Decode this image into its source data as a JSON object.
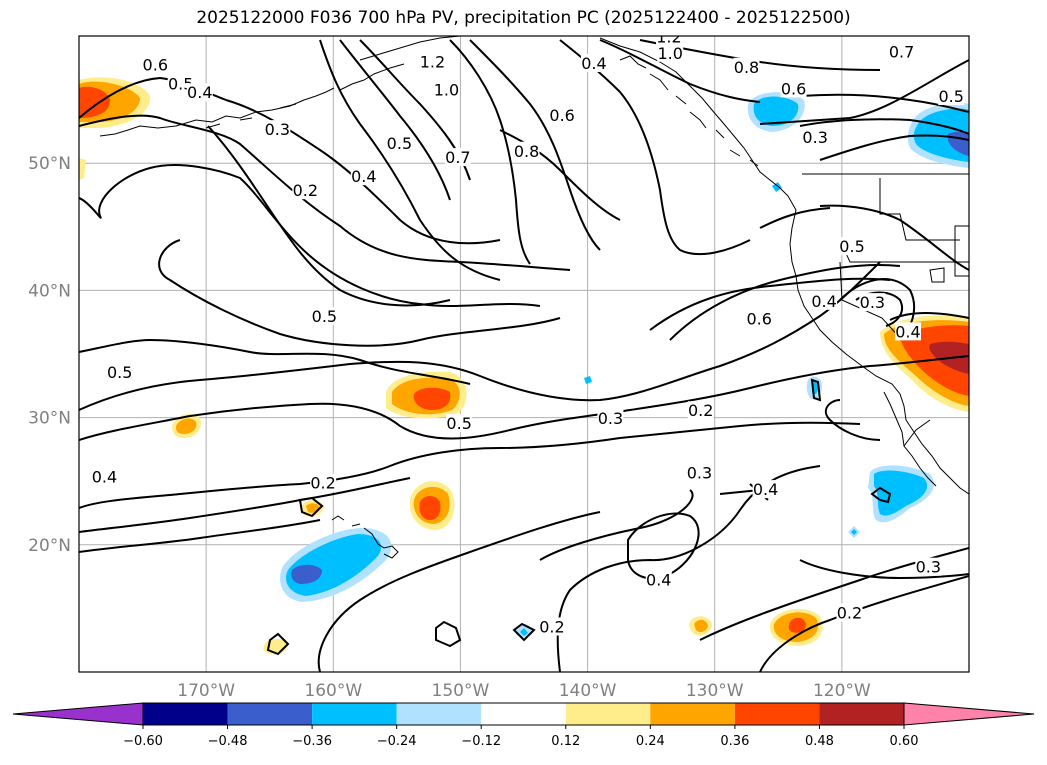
{
  "title": "2025122000 F036 700 hPa PV, precipitation PC (2025122400 - 2025122500)",
  "map": {
    "lon_range": [
      -180,
      -110
    ],
    "lat_range": [
      10,
      60
    ],
    "lat_ticks": [
      {
        "value": 50,
        "label": "50°N"
      },
      {
        "value": 40,
        "label": "40°N"
      },
      {
        "value": 30,
        "label": "30°N"
      },
      {
        "value": 20,
        "label": "20°N"
      }
    ],
    "lon_ticks": [
      {
        "value": -170,
        "label": "170°W"
      },
      {
        "value": -160,
        "label": "160°W"
      },
      {
        "value": -150,
        "label": "150°W"
      },
      {
        "value": -140,
        "label": "140°W"
      },
      {
        "value": -130,
        "label": "130°W"
      },
      {
        "value": -120,
        "label": "120°W"
      }
    ],
    "grid": true,
    "pv_contour_labels": [
      {
        "text": "0.6",
        "lon": -174,
        "lat": 57.7
      },
      {
        "text": "0.5",
        "lon": -172,
        "lat": 56.2
      },
      {
        "text": "0.4",
        "lon": -170.5,
        "lat": 55.5
      },
      {
        "text": "0.3",
        "lon": -164.4,
        "lat": 52.6
      },
      {
        "text": "0.2",
        "lon": -162.2,
        "lat": 47.8
      },
      {
        "text": "0.4",
        "lon": -157.6,
        "lat": 48.9
      },
      {
        "text": "0.5",
        "lon": -154.8,
        "lat": 51.5
      },
      {
        "text": "0.7",
        "lon": -150.2,
        "lat": 50.4
      },
      {
        "text": "0.8",
        "lon": -144.8,
        "lat": 50.9
      },
      {
        "text": "1.2",
        "lon": -152.2,
        "lat": 57.9
      },
      {
        "text": "1.0",
        "lon": -151.1,
        "lat": 55.7
      },
      {
        "text": "0.4",
        "lon": -139.5,
        "lat": 57.8
      },
      {
        "text": "0.6",
        "lon": -142,
        "lat": 53.7
      },
      {
        "text": "1.2",
        "lon": -133.6,
        "lat": 59.9
      },
      {
        "text": "1.0",
        "lon": -133.5,
        "lat": 58.6
      },
      {
        "text": "0.8",
        "lon": -127.5,
        "lat": 57.5
      },
      {
        "text": "0.6",
        "lon": -123.8,
        "lat": 55.8
      },
      {
        "text": "0.7",
        "lon": -115.3,
        "lat": 58.7
      },
      {
        "text": "0.5",
        "lon": -111.4,
        "lat": 55.2
      },
      {
        "text": "0.3",
        "lon": -122.1,
        "lat": 52
      },
      {
        "text": "0.5",
        "lon": -119.2,
        "lat": 43.4
      },
      {
        "text": "0.3",
        "lon": -117.6,
        "lat": 39
      },
      {
        "text": "0.4",
        "lon": -114.8,
        "lat": 36.7
      },
      {
        "text": "0.4",
        "lon": -121.4,
        "lat": 39.1
      },
      {
        "text": "0.6",
        "lon": -126.5,
        "lat": 37.7
      },
      {
        "text": "0.5",
        "lon": -160.7,
        "lat": 37.9
      },
      {
        "text": "0.5",
        "lon": -176.8,
        "lat": 33.5
      },
      {
        "text": "0.5",
        "lon": -150.1,
        "lat": 29.5
      },
      {
        "text": "0.3",
        "lon": -138.2,
        "lat": 29.9
      },
      {
        "text": "0.2",
        "lon": -131.1,
        "lat": 30.5
      },
      {
        "text": "0.4",
        "lon": -178,
        "lat": 25.3
      },
      {
        "text": "0.2",
        "lon": -160.8,
        "lat": 24.8
      },
      {
        "text": "0.3",
        "lon": -131.2,
        "lat": 25.6
      },
      {
        "text": "0.4",
        "lon": -126,
        "lat": 24.3
      },
      {
        "text": "0.4",
        "lon": -134.4,
        "lat": 17.2
      },
      {
        "text": "0.2",
        "lon": -142.8,
        "lat": 13.5
      },
      {
        "text": "0.2",
        "lon": -119.4,
        "lat": 14.6
      },
      {
        "text": "0.3",
        "lon": -113.2,
        "lat": 18.2
      }
    ]
  },
  "colorbar": {
    "ticks": [
      "−0.60",
      "−0.48",
      "−0.36",
      "−0.24",
      "−0.12",
      "0.12",
      "0.24",
      "0.36",
      "0.48",
      "0.60"
    ],
    "colors": [
      "#9932CC",
      "#00008B",
      "#3A5FCD",
      "#00BFFF",
      "#B0E2FF",
      "#FFFFFF",
      "#FFEC8B",
      "#FFA500",
      "#FF4500",
      "#B22222",
      "#FF82AB"
    ]
  }
}
